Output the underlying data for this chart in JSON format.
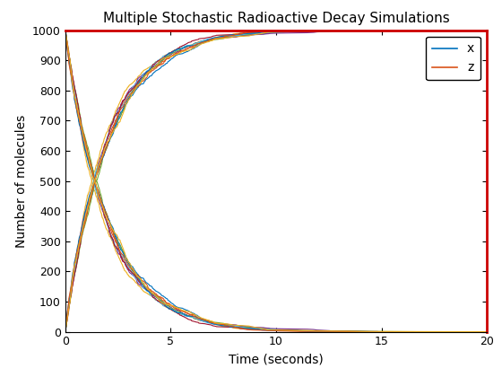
{
  "title": "Multiple Stochastic Radioactive Decay Simulations",
  "xlabel": "Time (seconds)",
  "ylabel": "Number of molecules",
  "xlim": [
    0,
    20
  ],
  "ylim": [
    0,
    1000
  ],
  "x_ticks": [
    0,
    5,
    10,
    15,
    20
  ],
  "y_ticks": [
    0,
    100,
    200,
    300,
    400,
    500,
    600,
    700,
    800,
    900,
    1000
  ],
  "n_simulations": 10,
  "t_max": 20,
  "N0": 1000,
  "lambda": 0.5,
  "seed": 12,
  "x_color": "#0072BD",
  "z_color": "#D95319",
  "line_alpha": 1.0,
  "linewidth": 0.8,
  "bg_color": "#FFFFFF",
  "title_fontsize": 11,
  "label_fontsize": 10,
  "tick_fontsize": 9,
  "legend_fontsize": 10,
  "matlab_colors": [
    "#0072BD",
    "#D95319",
    "#EDB120",
    "#7E2F8E",
    "#77AC30",
    "#4DBEEE",
    "#A2142F",
    "#0072BD",
    "#D95319",
    "#EDB120"
  ],
  "figure_width": 5.6,
  "figure_height": 4.2
}
